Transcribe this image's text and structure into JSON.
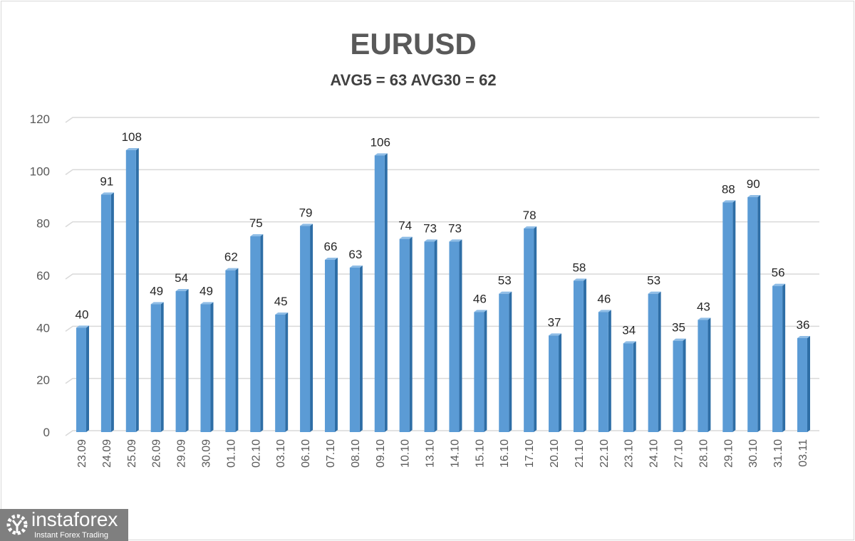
{
  "chart_data": {
    "type": "bar",
    "title": "EURUSD",
    "subtitle": "AVG5 = 63 AVG30 = 62",
    "categories": [
      "23.09",
      "24.09",
      "25.09",
      "26.09",
      "29.09",
      "30.09",
      "01.10",
      "02.10",
      "03.10",
      "06.10",
      "07.10",
      "08.10",
      "09.10",
      "10.10",
      "13.10",
      "14.10",
      "15.10",
      "16.10",
      "17.10",
      "20.10",
      "21.10",
      "22.10",
      "23.10",
      "24.10",
      "27.10",
      "28.10",
      "29.10",
      "30.10",
      "31.10",
      "03.11"
    ],
    "values": [
      40,
      91,
      108,
      49,
      54,
      49,
      62,
      75,
      45,
      79,
      66,
      63,
      106,
      74,
      73,
      73,
      46,
      53,
      78,
      37,
      58,
      46,
      34,
      53,
      35,
      43,
      88,
      90,
      56,
      36
    ],
    "ylim": [
      0,
      120
    ],
    "yticks": [
      0,
      20,
      40,
      60,
      80,
      100,
      120
    ],
    "grid": true,
    "legend": "none",
    "colors": {
      "bar": "#5b9bd5",
      "bar_side": "#2e6ea6",
      "bar_top": "#8fbde6"
    }
  },
  "logo": {
    "name": "instaforex",
    "tagline": "Instant Forex Trading"
  }
}
